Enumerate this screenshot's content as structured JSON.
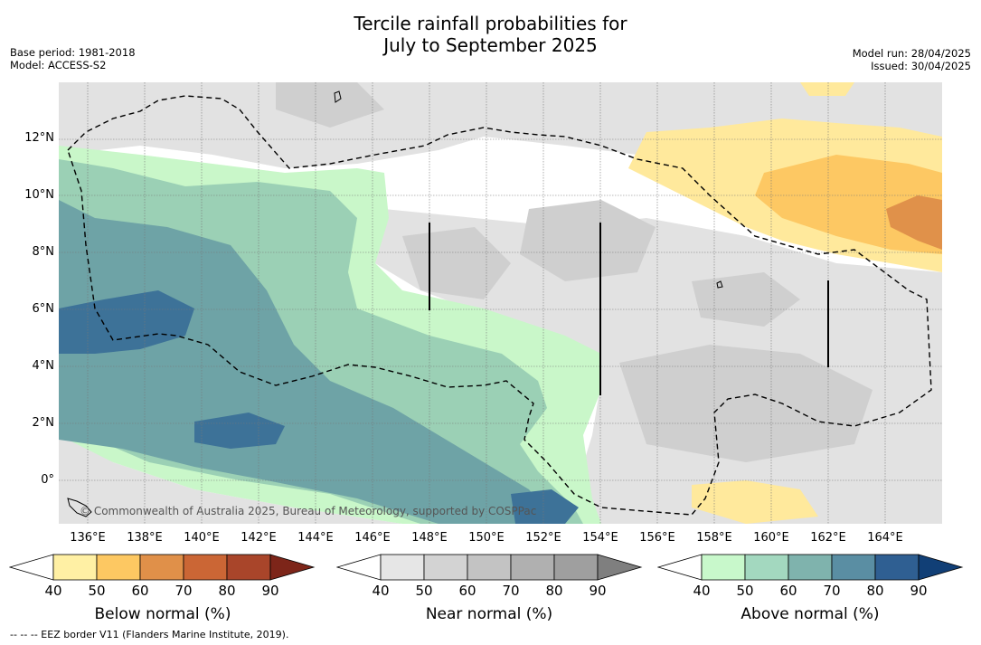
{
  "title": {
    "line1": "Tercile rainfall probabilities for",
    "line2": "July to September 2025"
  },
  "meta_left": {
    "base_period": "Base period: 1981-2018",
    "model": "Model: ACCESS-S2"
  },
  "meta_right": {
    "model_run": "Model run: 28/04/2025",
    "issued": "Issued: 30/04/2025"
  },
  "map": {
    "lat_labels": [
      "12°N",
      "10°N",
      "8°N",
      "6°N",
      "4°N",
      "2°N",
      "0°"
    ],
    "lon_labels": [
      "136°E",
      "138°E",
      "140°E",
      "142°E",
      "144°E",
      "146°E",
      "148°E",
      "150°E",
      "152°E",
      "154°E",
      "156°E",
      "158°E",
      "160°E",
      "162°E",
      "164°E"
    ],
    "copyright": "© Commonwealth of Australia 2025, Bureau of Meteorology, supported by COSPPac",
    "colors": {
      "land_bg": "#ffffff",
      "near_light": "#e3e3e3",
      "near_mid": "#d0d0d0",
      "above_40": "#c9f7c9",
      "above_50": "#9bd0b5",
      "above_60": "#6ea3a6",
      "above_70": "#3d7298",
      "below_40": "#ffe99c",
      "below_50": "#fdc863",
      "below_60": "#e0914a"
    }
  },
  "colorbars": [
    {
      "label": "Below normal (%)",
      "ticks": [
        "40",
        "50",
        "60",
        "70",
        "80",
        "90"
      ],
      "colors": [
        "#ffffff",
        "#fff0a4",
        "#fdc862",
        "#e09049",
        "#cb6635",
        "#a9452a",
        "#7d2519"
      ]
    },
    {
      "label": "Near normal (%)",
      "ticks": [
        "40",
        "50",
        "60",
        "70",
        "80",
        "90"
      ],
      "colors": [
        "#ffffff",
        "#e6e6e6",
        "#d3d3d3",
        "#c3c3c3",
        "#b0b0b0",
        "#9f9f9f",
        "#7f7f7f"
      ]
    },
    {
      "label": "Above normal (%)",
      "ticks": [
        "40",
        "50",
        "60",
        "70",
        "80",
        "90"
      ],
      "colors": [
        "#ffffff",
        "#c8f8cb",
        "#a3d8bf",
        "#7fb3ad",
        "#5a8ea3",
        "#2f5f92",
        "#113f76"
      ]
    }
  ],
  "footnote": "-- -- -- EEZ border V11 (Flanders Marine Institute, 2019)."
}
